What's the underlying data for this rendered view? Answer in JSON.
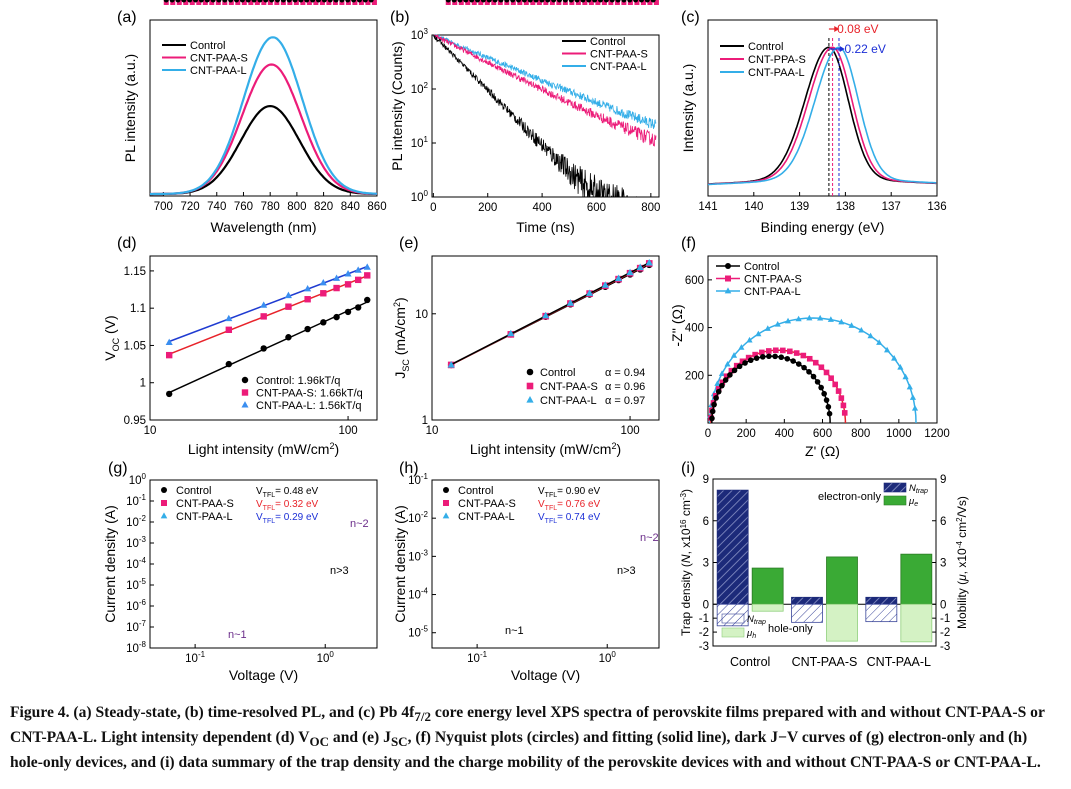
{
  "colors": {
    "control": "#000000",
    "s": "#ec1c79",
    "l": "#34aee8",
    "red_text": "#e8232a",
    "blue_text": "#1c2fd6",
    "purple_text": "#6b2d8a",
    "navy": "#1c2a7a",
    "green": "#3aaa35",
    "light_green": "#d4f2c4"
  },
  "chart_data": [
    {
      "panel": "(a)",
      "type": "line",
      "xlabel": "Wavelength (nm)",
      "ylabel": "PL intensity (a.u.)",
      "xlim": [
        690,
        860
      ],
      "ylim": [
        0,
        1.1
      ],
      "xticks": [
        "700",
        "720",
        "740",
        "760",
        "780",
        "800",
        "820",
        "840",
        "860"
      ],
      "series": [
        {
          "name": "Control",
          "peak_x": 780,
          "peak_y": 0.55
        },
        {
          "name": "CNT-PAA-S",
          "peak_x": 781,
          "peak_y": 0.81
        },
        {
          "name": "CNT-PAA-L",
          "peak_x": 782,
          "peak_y": 0.98
        }
      ]
    },
    {
      "panel": "(b)",
      "type": "line",
      "xlabel": "Time (ns)",
      "ylabel": "PL intensity (Counts)",
      "xlim": [
        -5,
        830
      ],
      "ylim_log": [
        0,
        3
      ],
      "xticks": [
        "0",
        "200",
        "400",
        "600",
        "800"
      ],
      "yticks": [
        "10",
        "10",
        "10",
        "10"
      ],
      "ytick_exps": [
        "0",
        "1",
        "2",
        "3"
      ],
      "series": [
        {
          "name": "Control",
          "tau": 85
        },
        {
          "name": "CNT-PAA-S",
          "tau": 170
        },
        {
          "name": "CNT-PAA-L",
          "tau": 205
        }
      ]
    },
    {
      "panel": "(c)",
      "type": "line",
      "xlabel": "Binding energy (eV)",
      "ylabel": "Intensity (a.u.)",
      "xlim": [
        141,
        136
      ],
      "ylim": [
        0,
        1.1
      ],
      "xticks": [
        "141",
        "140",
        "139",
        "138",
        "137",
        "136"
      ],
      "annotations": [
        "0.08 eV",
        "0.22 eV"
      ],
      "series": [
        {
          "name": "Control",
          "peak_x": 138.36
        },
        {
          "name": "CNT-PPA-S",
          "peak_x": 138.28
        },
        {
          "name": "CNT-PAA-L",
          "peak_x": 138.14
        }
      ]
    },
    {
      "panel": "(d)",
      "type": "scatter",
      "xlabel": "Light intensity (mW/cm",
      "xlabel_sup": "2",
      "xlabel_end": ")",
      "ylabel": "V",
      "ylabel_sub": "OC",
      "ylabel_end": " (V)",
      "xlim_log": [
        10,
        140
      ],
      "ylim": [
        0.95,
        1.17
      ],
      "xticks": [
        "10",
        "100"
      ],
      "yticks": [
        "0.95",
        "1",
        "1.05",
        "1.1",
        "1.15"
      ],
      "x": [
        12.5,
        25,
        37.5,
        50,
        62.5,
        75,
        87.5,
        100,
        112.5,
        125
      ],
      "series": [
        {
          "name": "Control: 1.96kT/q",
          "values": [
            0.985,
            1.025,
            1.046,
            1.061,
            1.072,
            1.081,
            1.088,
            1.095,
            1.101,
            1.111
          ]
        },
        {
          "name": "CNT-PAA-S: 1.66kT/q",
          "values": [
            1.037,
            1.071,
            1.089,
            1.102,
            1.112,
            1.12,
            1.127,
            1.132,
            1.138,
            1.144
          ]
        },
        {
          "name": "CNT-PAA-L: 1.56kT/q",
          "values": [
            1.054,
            1.086,
            1.104,
            1.117,
            1.126,
            1.134,
            1.14,
            1.146,
            1.151,
            1.155
          ]
        }
      ]
    },
    {
      "panel": "(e)",
      "type": "scatter",
      "xlabel": "Light intensity (mW/cm",
      "xlabel_sup": "2",
      "xlabel_end": ")",
      "ylabel": "J",
      "ylabel_sub": "SC",
      "ylabel_end": " (mA/cm",
      "ylabel_sup": "2",
      "ylabel_end2": ")",
      "xlim_log": [
        10,
        140
      ],
      "ylim_log": [
        1,
        35
      ],
      "xticks": [
        "10",
        "100"
      ],
      "yticks": [
        "1",
        "10"
      ],
      "x": [
        12.5,
        25,
        37.5,
        50,
        62.5,
        75,
        87.5,
        100,
        112.5,
        125
      ],
      "series": [
        {
          "name": "Control",
          "alpha": "α = 0.94",
          "values": [
            3.3,
            6.4,
            9.4,
            12.3,
            15.2,
            18.0,
            20.8,
            23.5,
            26.2,
            28.9
          ]
        },
        {
          "name": "CNT-PAA-S",
          "alpha": "α = 0.96",
          "values": [
            3.3,
            6.4,
            9.5,
            12.5,
            15.5,
            18.4,
            21.2,
            24.1,
            26.9,
            29.8
          ]
        },
        {
          "name": "CNT-PAA-L",
          "alpha": "α = 0.97",
          "values": [
            3.3,
            6.5,
            9.6,
            12.6,
            15.6,
            18.6,
            21.5,
            24.4,
            27.3,
            30.2
          ]
        }
      ]
    },
    {
      "panel": "(f)",
      "type": "scatter",
      "xlabel": "Z' (Ω)",
      "ylabel": "-Z'' (Ω)",
      "xlim": [
        0,
        1200
      ],
      "ylim": [
        0,
        700
      ],
      "xticks": [
        "0",
        "200",
        "400",
        "600",
        "800",
        "1000",
        "1200"
      ],
      "yticks": [
        "200",
        "400",
        "600"
      ],
      "series": [
        {
          "name": "Control",
          "r_start": 20,
          "r_end": 640,
          "height": 280
        },
        {
          "name": "CNT-PAA-S",
          "r_start": 15,
          "r_end": 720,
          "height": 305
        },
        {
          "name": "CNT-PAA-L",
          "r_start": 10,
          "r_end": 1090,
          "height": 440
        }
      ]
    },
    {
      "panel": "(g)",
      "type": "scatter",
      "xlabel": "Voltage (V)",
      "ylabel": "Current density (A)",
      "xlim_log": [
        0.045,
        2.5
      ],
      "ylim_log": [
        -8,
        0
      ],
      "xticks": [
        "10",
        "10"
      ],
      "xtick_exps": [
        "-1",
        "0"
      ],
      "yticks": [
        "10",
        "10",
        "10",
        "10",
        "10",
        "10",
        "10",
        "10",
        "10"
      ],
      "ytick_exps": [
        "-8",
        "-7",
        "-6",
        "-5",
        "-4",
        "-3",
        "-2",
        "-1",
        "0"
      ],
      "annotations": [
        "n~1",
        "n>3",
        "n~2"
      ],
      "series": [
        {
          "name": "Control",
          "vtfl": "V",
          "vtfl_sub": "TFL",
          "vtfl_val": "= 0.48 eV",
          "vtfl_v": 0.48
        },
        {
          "name": "CNT-PAA-S",
          "vtfl": "V",
          "vtfl_sub": "TFL",
          "vtfl_val": "= 0.32 eV",
          "vtfl_v": 0.32
        },
        {
          "name": "CNT-PAA-L",
          "vtfl": "V",
          "vtfl_sub": "TFL",
          "vtfl_val": "= 0.29 eV",
          "vtfl_v": 0.29
        }
      ]
    },
    {
      "panel": "(h)",
      "type": "scatter",
      "xlabel": "Voltage (V)",
      "ylabel": "Current density (A)",
      "xlim_log": [
        0.045,
        2.5
      ],
      "ylim_log": [
        -5.4,
        -1
      ],
      "xticks": [
        "10",
        "10"
      ],
      "xtick_exps": [
        "-1",
        "0"
      ],
      "yticks": [
        "10",
        "10",
        "10",
        "10",
        "10"
      ],
      "ytick_exps": [
        "-5",
        "-4",
        "-3",
        "-2",
        "-1"
      ],
      "annotations": [
        "n~1",
        "n>3",
        "n~2"
      ],
      "series": [
        {
          "name": "Control",
          "vtfl": "V",
          "vtfl_sub": "TFL",
          "vtfl_val": "= 0.90 eV",
          "vtfl_v": 0.9
        },
        {
          "name": "CNT-PAA-S",
          "vtfl": "V",
          "vtfl_sub": "TFL",
          "vtfl_val": "= 0.76 eV",
          "vtfl_v": 0.76
        },
        {
          "name": "CNT-PAA-L",
          "vtfl": "V",
          "vtfl_sub": "TFL",
          "vtfl_val": "= 0.74 eV",
          "vtfl_v": 0.74
        }
      ]
    },
    {
      "panel": "(i)",
      "type": "bar",
      "categories": [
        "Control",
        "CNT-PAA-S",
        "CNT-PAA-L"
      ],
      "ylabel_left": "Trap density (",
      "ylabel_left_n": "N",
      "ylabel_left_mid": ", x10",
      "ylabel_left_sup": "16",
      "ylabel_left_end": " cm",
      "ylabel_left_sup2": "-3",
      "ylabel_left_end2": ")",
      "ylabel_right": "Mobility (",
      "ylabel_right_mu": "μ",
      "ylabel_right_mid": ", x10",
      "ylabel_right_sup": "-4",
      "ylabel_right_end": " cm",
      "ylabel_right_sup2": "2",
      "ylabel_right_end2": "/Vs)",
      "ylim": [
        -3,
        9
      ],
      "yticks": [
        "-3",
        "-2",
        "-1",
        "0",
        "3",
        "6",
        "9"
      ],
      "electron_label": "electron-only",
      "hole_label": "hole-only",
      "legend_ntrap": "N",
      "legend_ntrap_sub": "trap",
      "legend_mue": "μ",
      "legend_mue_sub": "e",
      "legend_muh": "μ",
      "legend_muh_sub": "h",
      "ntrap_electron": [
        8.2,
        0.5,
        0.5
      ],
      "mu_e": [
        2.6,
        3.4,
        3.6
      ],
      "ntrap_hole": [
        -1.55,
        -1.3,
        -1.25
      ],
      "mu_h": [
        -0.5,
        -2.65,
        -2.7
      ]
    }
  ],
  "caption": {
    "p1": "Figure 4. (a) Steady-state, (b) time-resolved PL, and (c) Pb 4f",
    "p1_sub": "7/2",
    "p2": " core energy level XPS spectra of perovskite films prepared with and without CNT-PAA-S or CNT-PAA-L. Light intensity dependent (d) V",
    "p2_sub": "OC",
    "p3": " and (e) J",
    "p3_sub": "SC",
    "p4": ", (f) Nyquist plots (circles) and fitting (solid line), dark J−V curves of (g) electron-only and (h) hole-only devices, and (i) data summary of the trap density and the charge mobility of the perovskite devices with and without CNT-PAA-S or CNT-PAA-L."
  }
}
